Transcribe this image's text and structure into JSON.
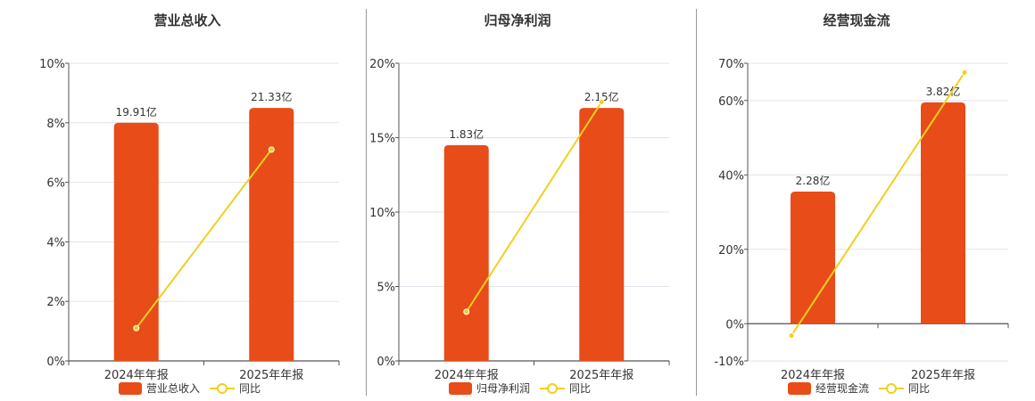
{
  "colors": {
    "bar": "#E84C18",
    "line": "#F0D020",
    "grid": "#E3E3EA",
    "axis": "#555555"
  },
  "chart_data": [
    {
      "type": "bar",
      "title": "营业总收入",
      "categories": [
        "2024年年报",
        "2025年年报"
      ],
      "series": [
        {
          "name": "营业总收入",
          "type": "bar",
          "values": [
            8.0,
            8.5
          ],
          "labels": [
            "19.91亿",
            "21.33亿"
          ]
        },
        {
          "name": "同比",
          "type": "line",
          "values": [
            1.1,
            7.1
          ]
        }
      ],
      "yticks": [
        "0%",
        "2%",
        "4%",
        "6%",
        "8%",
        "10%"
      ],
      "ytick_values": [
        0,
        2,
        4,
        6,
        8,
        10
      ],
      "ylim": [
        0,
        10
      ],
      "grid": true,
      "legend": "bottom-center"
    },
    {
      "type": "bar",
      "title": "归母净利润",
      "categories": [
        "2024年年报",
        "2025年年报"
      ],
      "series": [
        {
          "name": "归母净利润",
          "type": "bar",
          "values": [
            14.5,
            17.0
          ],
          "labels": [
            "1.83亿",
            "2.15亿"
          ]
        },
        {
          "name": "同比",
          "type": "line",
          "values": [
            3.3,
            17.4
          ]
        }
      ],
      "yticks": [
        "0%",
        "5%",
        "10%",
        "15%",
        "20%"
      ],
      "ytick_values": [
        0,
        5,
        10,
        15,
        20
      ],
      "ylim": [
        0,
        20
      ],
      "grid": true,
      "legend": "bottom-center"
    },
    {
      "type": "bar",
      "title": "经营现金流",
      "categories": [
        "2024年年报",
        "2025年年报"
      ],
      "series": [
        {
          "name": "经营现金流",
          "type": "bar",
          "values": [
            35.5,
            59.5
          ],
          "labels": [
            "2.28亿",
            "3.82亿"
          ]
        },
        {
          "name": "同比",
          "type": "line",
          "values": [
            -3.2,
            67.5
          ]
        }
      ],
      "yticks": [
        "-10%",
        "0%",
        "20%",
        "40%",
        "60%",
        "70%"
      ],
      "ytick_values": [
        -10,
        0,
        20,
        40,
        60,
        70
      ],
      "ylim": [
        -10,
        70
      ],
      "grid": true,
      "legend": "bottom-center"
    }
  ]
}
